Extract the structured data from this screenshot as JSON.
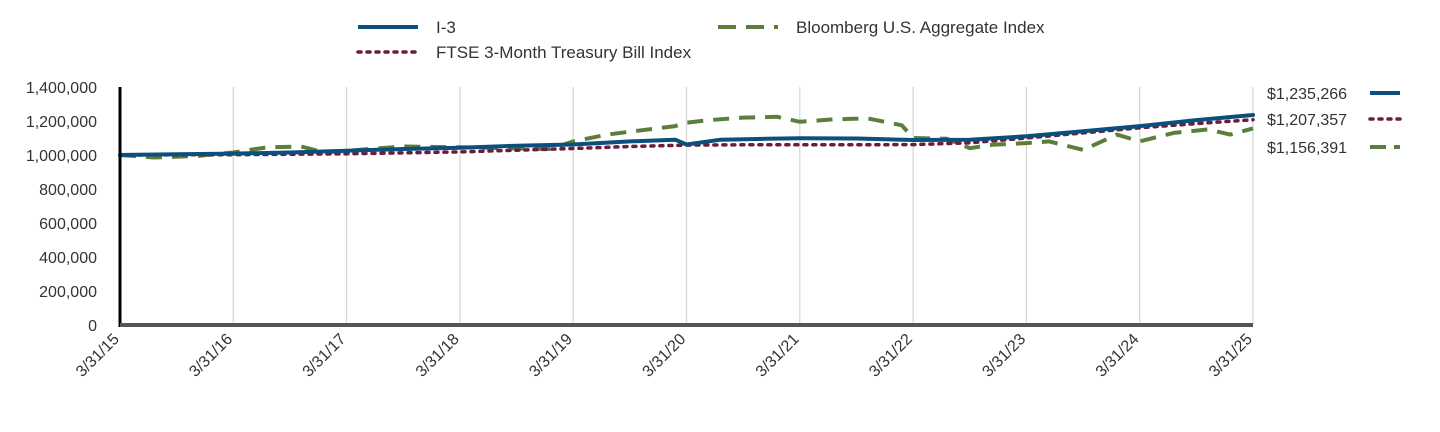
{
  "chart_data": {
    "type": "line",
    "title": "",
    "xlabel": "",
    "ylabel": "",
    "ylim": [
      0,
      1400000
    ],
    "y_ticks": [
      0,
      200000,
      400000,
      600000,
      800000,
      1000000,
      1200000,
      1400000
    ],
    "y_tick_labels": [
      "0",
      "200,000",
      "400,000",
      "600,000",
      "800,000",
      "1,000,000",
      "1,200,000",
      "1,400,000"
    ],
    "x_range": [
      2015.0,
      2025.0
    ],
    "x_ticks": [
      2015,
      2016,
      2017,
      2018,
      2019,
      2020,
      2021,
      2022,
      2023,
      2024,
      2025
    ],
    "x_tick_labels": [
      "3/31/15",
      "3/31/16",
      "3/31/17",
      "3/31/18",
      "3/31/19",
      "3/31/20",
      "3/31/21",
      "3/31/22",
      "3/31/23",
      "3/31/24",
      "3/31/25"
    ],
    "grid": "vertical",
    "legend_position": "top",
    "series": [
      {
        "name": "I-3",
        "color": "#0b4f7c",
        "style": "solid",
        "end_label": "$1,235,266",
        "x": [
          2015.0,
          2015.5,
          2016.0,
          2016.5,
          2017.0,
          2017.5,
          2018.0,
          2018.5,
          2019.0,
          2019.5,
          2019.9,
          2020.0,
          2020.3,
          2020.7,
          2021.0,
          2021.5,
          2022.0,
          2022.5,
          2023.0,
          2023.5,
          2024.0,
          2024.5,
          2025.0
        ],
        "values": [
          1000000,
          1005000,
          1008000,
          1015000,
          1025000,
          1035000,
          1043000,
          1055000,
          1062000,
          1080000,
          1090000,
          1062000,
          1090000,
          1095000,
          1098000,
          1097000,
          1088000,
          1090000,
          1110000,
          1140000,
          1170000,
          1205000,
          1235266
        ]
      },
      {
        "name": "FTSE 3-Month Treasury Bill Index",
        "color": "#6b1d3d",
        "style": "dotted",
        "end_label": "$1,207,357",
        "x": [
          2015.0,
          2016.0,
          2017.0,
          2018.0,
          2019.0,
          2019.5,
          2020.0,
          2020.5,
          2021.0,
          2021.5,
          2022.0,
          2022.5,
          2023.0,
          2023.5,
          2024.0,
          2024.5,
          2025.0
        ],
        "values": [
          1000000,
          1002000,
          1007000,
          1018000,
          1038000,
          1050000,
          1058000,
          1060000,
          1060000,
          1060000,
          1061000,
          1072000,
          1100000,
          1130000,
          1160000,
          1185000,
          1207357
        ]
      },
      {
        "name": "Bloomberg U.S. Aggregate Index",
        "color": "#5b7f3a",
        "style": "dashed",
        "end_label": "$1,156,391",
        "x": [
          2015.0,
          2015.3,
          2015.7,
          2016.0,
          2016.3,
          2016.6,
          2016.8,
          2017.0,
          2017.5,
          2018.0,
          2018.4,
          2018.8,
          2019.0,
          2019.3,
          2019.6,
          2019.9,
          2020.0,
          2020.2,
          2020.5,
          2020.8,
          2021.0,
          2021.3,
          2021.6,
          2021.9,
          2022.0,
          2022.3,
          2022.5,
          2022.7,
          2023.0,
          2023.2,
          2023.5,
          2023.8,
          2024.0,
          2024.3,
          2024.6,
          2024.8,
          2025.0
        ],
        "values": [
          1000000,
          985000,
          995000,
          1015000,
          1045000,
          1050000,
          1015000,
          1025000,
          1050000,
          1045000,
          1040000,
          1035000,
          1080000,
          1120000,
          1145000,
          1170000,
          1190000,
          1205000,
          1220000,
          1225000,
          1195000,
          1210000,
          1215000,
          1175000,
          1100000,
          1095000,
          1040000,
          1060000,
          1070000,
          1080000,
          1030000,
          1120000,
          1080000,
          1130000,
          1150000,
          1120000,
          1156391
        ]
      }
    ]
  }
}
